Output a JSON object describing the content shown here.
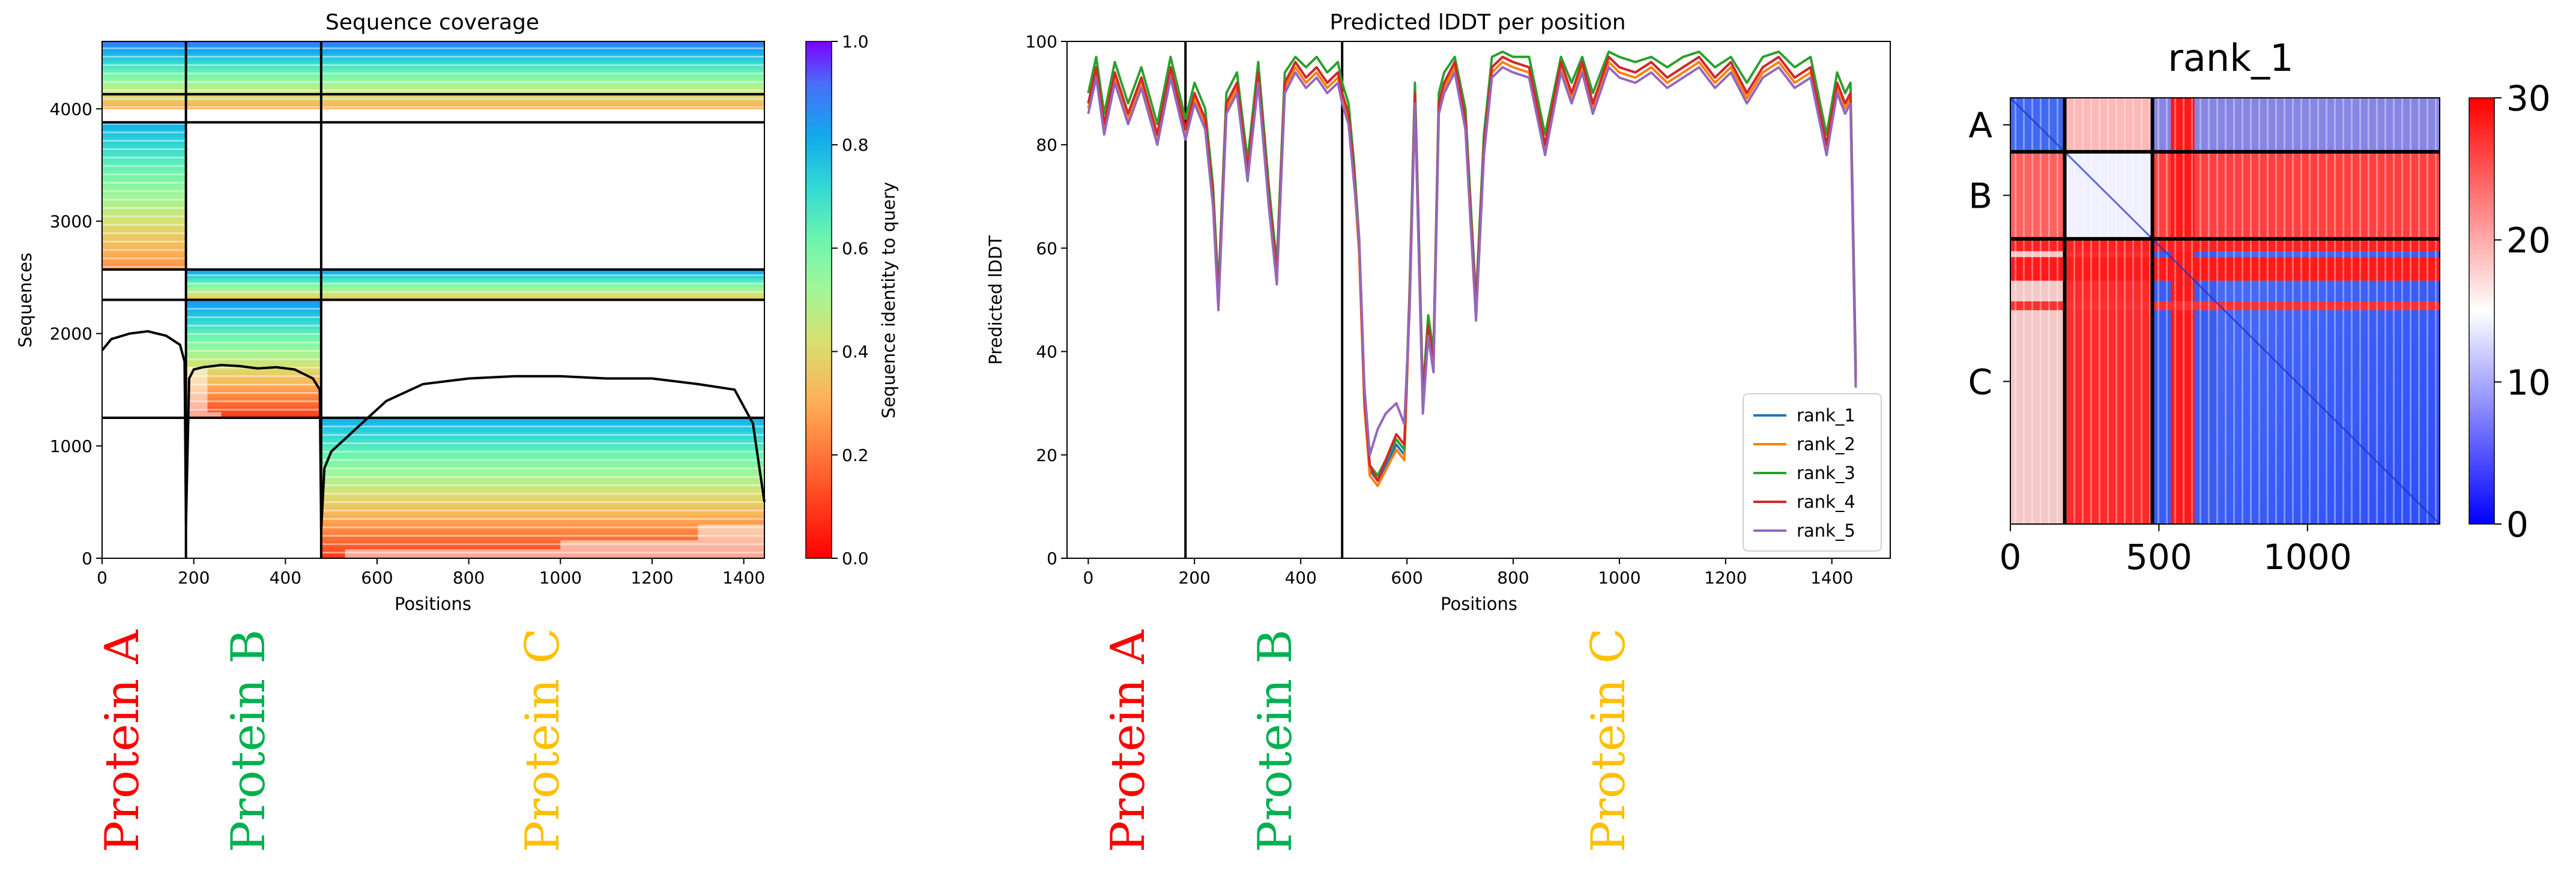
{
  "chart_data": [
    {
      "type": "heatmap",
      "title": "Sequence coverage",
      "xlabel": "Positions",
      "ylabel": "Sequences",
      "xlim": [
        0,
        1445
      ],
      "ylim": [
        0,
        4600
      ],
      "xticks": [
        0,
        200,
        400,
        600,
        800,
        1000,
        1200,
        1400
      ],
      "yticks": [
        0,
        1000,
        2000,
        3000,
        4000
      ],
      "chain_boundaries": [
        183,
        478
      ],
      "horizontal_lines": [
        4130,
        3880,
        2570,
        2300,
        1250
      ],
      "msa_blocks": [
        {
          "x": [
            0,
            1445
          ],
          "y": [
            4000,
            4600
          ],
          "identity": [
            0.3,
            0.9
          ]
        },
        {
          "x": [
            0,
            183
          ],
          "y": [
            2580,
            3880
          ],
          "identity": [
            0.25,
            0.8
          ]
        },
        {
          "x": [
            183,
            1445
          ],
          "y": [
            2300,
            2570
          ],
          "identity": [
            0.35,
            0.85
          ]
        },
        {
          "x": [
            183,
            478
          ],
          "y": [
            1250,
            2300
          ],
          "identity": [
            0.1,
            0.85
          ]
        },
        {
          "x": [
            478,
            1445
          ],
          "y": [
            0,
            1250
          ],
          "identity": [
            0.1,
            0.8
          ]
        }
      ],
      "coverage_line": {
        "x": [
          0,
          20,
          60,
          100,
          140,
          170,
          180,
          183,
          190,
          200,
          220,
          260,
          300,
          340,
          380,
          420,
          460,
          475,
          478,
          485,
          500,
          540,
          580,
          620,
          700,
          800,
          900,
          1000,
          1100,
          1200,
          1300,
          1380,
          1420,
          1445
        ],
        "y": [
          1850,
          1950,
          2000,
          2020,
          1980,
          1900,
          1750,
          300,
          1600,
          1680,
          1700,
          1720,
          1710,
          1690,
          1700,
          1680,
          1600,
          1500,
          250,
          800,
          950,
          1100,
          1250,
          1400,
          1550,
          1600,
          1620,
          1620,
          1600,
          1600,
          1550,
          1500,
          1200,
          500
        ]
      },
      "colorbar": {
        "label": "Sequence identity to query",
        "min": 0.0,
        "max": 1.0,
        "ticks": [
          "0.0",
          "0.2",
          "0.4",
          "0.6",
          "0.8",
          "1.0"
        ]
      }
    },
    {
      "type": "line",
      "title": "Predicted lDDT per position",
      "xlabel": "Positions",
      "ylabel": "Predicted lDDT",
      "xlim": [
        -40,
        1510
      ],
      "ylim": [
        0,
        100
      ],
      "xticks": [
        0,
        200,
        400,
        600,
        800,
        1000,
        1200,
        1400
      ],
      "yticks": [
        0,
        20,
        40,
        60,
        80,
        100
      ],
      "chain_boundaries": [
        183,
        478
      ],
      "x": [
        0,
        15,
        30,
        50,
        75,
        100,
        130,
        155,
        183,
        200,
        220,
        235,
        245,
        260,
        280,
        300,
        320,
        340,
        355,
        370,
        390,
        410,
        430,
        450,
        470,
        478,
        490,
        500,
        510,
        520,
        530,
        545,
        560,
        580,
        595,
        605,
        615,
        630,
        640,
        650,
        660,
        670,
        690,
        710,
        730,
        745,
        760,
        780,
        800,
        830,
        860,
        890,
        910,
        930,
        950,
        980,
        1000,
        1030,
        1060,
        1090,
        1120,
        1150,
        1180,
        1210,
        1240,
        1270,
        1300,
        1330,
        1360,
        1390,
        1410,
        1425,
        1435,
        1445
      ],
      "series": [
        {
          "name": "rank_1",
          "color": "#1f77b4",
          "values": [
            88,
            95,
            84,
            94,
            86,
            93,
            82,
            95,
            83,
            90,
            85,
            70,
            50,
            88,
            92,
            75,
            94,
            70,
            55,
            92,
            96,
            93,
            95,
            92,
            94,
            90,
            86,
            75,
            60,
            30,
            17,
            15,
            18,
            22,
            20,
            50,
            90,
            30,
            45,
            38,
            88,
            92,
            96,
            85,
            48,
            80,
            95,
            97,
            96,
            95,
            80,
            96,
            90,
            96,
            88,
            97,
            95,
            94,
            96,
            93,
            95,
            97,
            93,
            96,
            90,
            95,
            97,
            93,
            95,
            80,
            92,
            88,
            90,
            35
          ]
        },
        {
          "name": "rank_2",
          "color": "#ff7f0e",
          "values": [
            87,
            94,
            83,
            93,
            85,
            92,
            81,
            94,
            82,
            89,
            84,
            69,
            49,
            87,
            91,
            74,
            93,
            69,
            54,
            91,
            95,
            92,
            94,
            91,
            93,
            89,
            85,
            74,
            59,
            29,
            16,
            14,
            17,
            21,
            19,
            49,
            89,
            29,
            44,
            37,
            87,
            91,
            95,
            84,
            47,
            79,
            94,
            96,
            95,
            94,
            79,
            95,
            89,
            95,
            87,
            96,
            94,
            93,
            95,
            92,
            94,
            96,
            92,
            95,
            89,
            94,
            96,
            92,
            94,
            79,
            91,
            87,
            89,
            34
          ]
        },
        {
          "name": "rank_3",
          "color": "#2ca02c",
          "values": [
            90,
            97,
            86,
            96,
            88,
            95,
            84,
            97,
            85,
            92,
            87,
            72,
            52,
            90,
            94,
            77,
            96,
            72,
            57,
            94,
            97,
            95,
            97,
            94,
            96,
            92,
            88,
            77,
            62,
            32,
            18,
            16,
            19,
            23,
            21,
            52,
            92,
            32,
            47,
            40,
            90,
            94,
            97,
            87,
            50,
            82,
            97,
            98,
            97,
            97,
            82,
            97,
            92,
            97,
            90,
            98,
            97,
            96,
            97,
            95,
            97,
            98,
            95,
            97,
            92,
            97,
            98,
            95,
            97,
            82,
            94,
            90,
            92,
            37
          ]
        },
        {
          "name": "rank_4",
          "color": "#d62728",
          "values": [
            88,
            95,
            84,
            94,
            86,
            93,
            82,
            95,
            83,
            90,
            85,
            70,
            50,
            88,
            92,
            75,
            94,
            70,
            55,
            92,
            96,
            93,
            95,
            92,
            94,
            90,
            86,
            75,
            61,
            31,
            18,
            15,
            19,
            24,
            22,
            50,
            90,
            30,
            45,
            38,
            88,
            92,
            96,
            85,
            48,
            80,
            95,
            97,
            96,
            95,
            80,
            96,
            90,
            96,
            88,
            97,
            95,
            94,
            96,
            93,
            95,
            97,
            93,
            96,
            90,
            95,
            97,
            93,
            95,
            80,
            92,
            88,
            90,
            35
          ]
        },
        {
          "name": "rank_5",
          "color": "#9467bd",
          "values": [
            86,
            93,
            82,
            92,
            84,
            91,
            80,
            93,
            81,
            88,
            83,
            68,
            48,
            86,
            90,
            73,
            92,
            68,
            53,
            90,
            94,
            91,
            93,
            90,
            92,
            88,
            84,
            73,
            62,
            33,
            20,
            25,
            28,
            30,
            26,
            48,
            88,
            28,
            43,
            36,
            86,
            90,
            94,
            83,
            46,
            78,
            93,
            95,
            94,
            93,
            78,
            94,
            88,
            94,
            86,
            95,
            93,
            92,
            94,
            91,
            93,
            95,
            91,
            94,
            88,
            93,
            95,
            91,
            93,
            78,
            90,
            86,
            88,
            33
          ]
        }
      ],
      "legend": {
        "position": "lower-right"
      }
    },
    {
      "type": "heatmap",
      "title": "rank_1",
      "xlim": [
        0,
        1445
      ],
      "ylim": [
        1445,
        0
      ],
      "xticks": [
        "0",
        "500",
        "1000"
      ],
      "chain_labels": [
        "A",
        "B",
        "C"
      ],
      "chain_boundaries": [
        183,
        478
      ],
      "colorbar": {
        "min": 0,
        "max": 30,
        "ticks": [
          "0",
          "10",
          "20",
          "30"
        ],
        "colors": [
          "#0000ff",
          "#ffffff",
          "#ff0000"
        ]
      }
    }
  ],
  "protein_labels": {
    "panel1": [
      {
        "text": "Protein A",
        "color": "#ff0000"
      },
      {
        "text": "Protein B",
        "color": "#00b050"
      },
      {
        "text": "Protein C",
        "color": "#ffc000"
      }
    ],
    "panel2": [
      {
        "text": "Protein A",
        "color": "#ff0000"
      },
      {
        "text": "Protein B",
        "color": "#00b050"
      },
      {
        "text": "Protein C",
        "color": "#ffc000"
      }
    ]
  }
}
